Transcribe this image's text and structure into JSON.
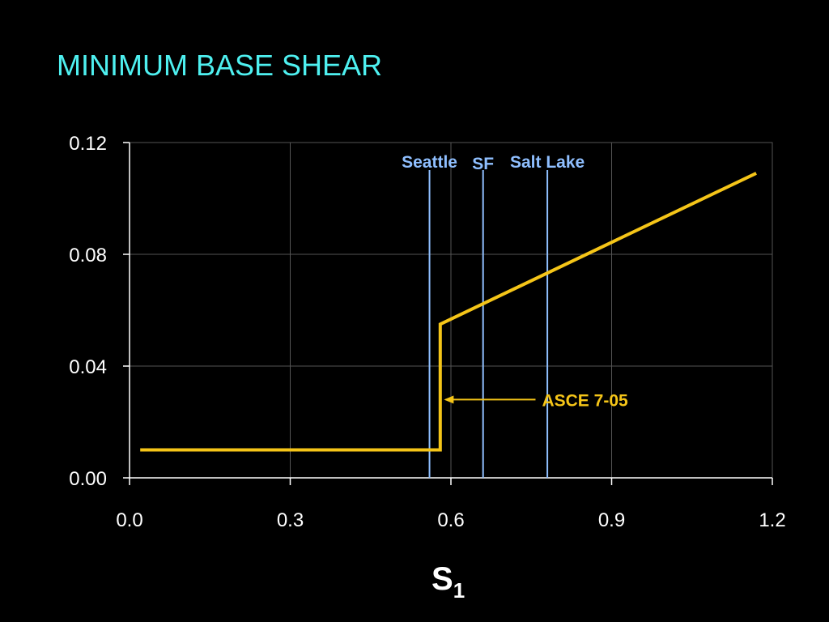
{
  "slide": {
    "title": "MINIMUM BASE SHEAR"
  },
  "colors": {
    "background": "#000000",
    "title": "#4ef0f0",
    "series_line": "#f5c518",
    "marker_lines": "#8fbfff",
    "gridlines": "#555555",
    "axis": "#ffffff"
  },
  "chart_data": {
    "type": "line",
    "title": "",
    "xlabel_main": "S",
    "xlabel_sub": "1",
    "ylabel": "",
    "xlim": [
      0.0,
      1.2
    ],
    "ylim": [
      0.0,
      0.12
    ],
    "grid": true,
    "x_ticks": [
      "0.0",
      "0.3",
      "0.6",
      "0.9",
      "1.2"
    ],
    "x_tick_values": [
      0.0,
      0.3,
      0.6,
      0.9,
      1.2
    ],
    "y_ticks": [
      "0.00",
      "0.04",
      "0.08",
      "0.12"
    ],
    "y_tick_values": [
      0.0,
      0.04,
      0.08,
      0.12
    ],
    "series": [
      {
        "points": [
          [
            0.02,
            0.01
          ],
          [
            0.58,
            0.01
          ],
          [
            0.58,
            0.055
          ],
          [
            1.17,
            0.109
          ]
        ]
      }
    ],
    "vertical_markers": [
      {
        "label": "Seattle",
        "x": 0.56
      },
      {
        "label": "SF",
        "x": 0.66
      },
      {
        "label": "Salt Lake",
        "x": 0.78
      }
    ],
    "annotations": [
      {
        "label": "ASCE 7-05",
        "arrow_from": [
          0.77,
          0.028
        ],
        "arrow_to": [
          0.59,
          0.028
        ]
      }
    ]
  }
}
